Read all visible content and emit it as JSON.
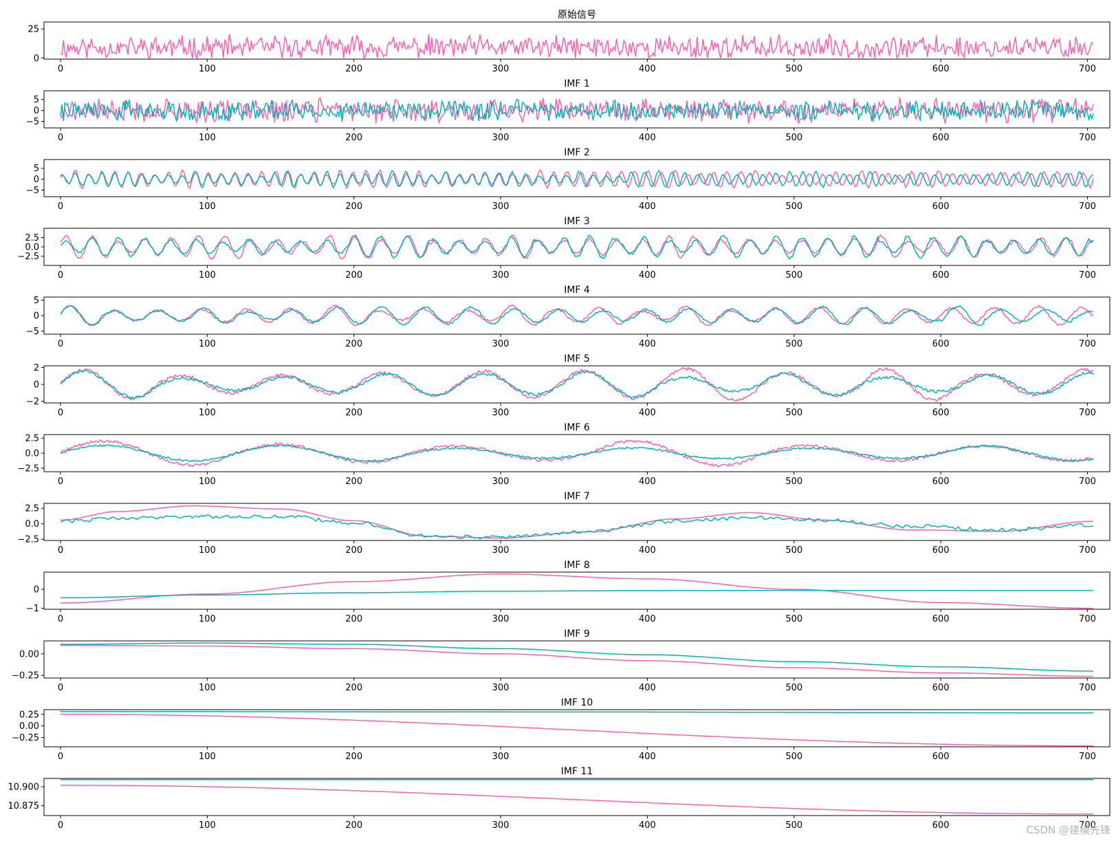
{
  "colors": {
    "original": "#ff5db1",
    "decomposed": "#00b5b8",
    "axes": "#000000"
  },
  "watermark": "CSDN @建模先锋",
  "chart_data": {
    "type": "line",
    "x_range": [
      0,
      704
    ],
    "x_ticks": [
      0,
      100,
      200,
      300,
      400,
      500,
      600,
      700
    ],
    "grid": false,
    "legend": "none",
    "panels": [
      {
        "title": "原始信号",
        "ylim": [
          -1,
          31
        ],
        "yticks": [
          0,
          25
        ],
        "ytick_labels": [
          "0",
          "25"
        ],
        "series": [
          {
            "role": "signal",
            "color": "#ff5db1",
            "shape": "noise",
            "mean": 9,
            "amp": 8,
            "min": 0,
            "max": 30,
            "seed": 11,
            "x": [
              0,
              704
            ]
          }
        ]
      },
      {
        "title": "IMF 1",
        "ylim": [
          -8,
          9
        ],
        "yticks": [
          -5,
          0,
          5
        ],
        "ytick_labels": [
          "−5",
          "0",
          "5"
        ],
        "series": [
          {
            "role": "original",
            "color": "#ff5db1",
            "shape": "noise",
            "mean": 0,
            "amp": 4.2,
            "seed": 21,
            "x": [
              0,
              704
            ]
          },
          {
            "role": "reconstructed",
            "color": "#00b5b8",
            "shape": "noise",
            "mean": 0,
            "amp": 3.6,
            "seed": 22,
            "x": [
              0,
              704
            ]
          }
        ]
      },
      {
        "title": "IMF 2",
        "ylim": [
          -8,
          9
        ],
        "yticks": [
          -5,
          0,
          5
        ],
        "ytick_labels": [
          "−5",
          "0",
          "5"
        ],
        "series": [
          {
            "role": "original",
            "color": "#ff5db1",
            "shape": "osc",
            "period": 9,
            "amp": 3.5,
            "seed": 31,
            "x": [
              0,
              704
            ]
          },
          {
            "role": "reconstructed",
            "color": "#00b5b8",
            "shape": "osc",
            "period": 9,
            "amp": 3.2,
            "seed": 32,
            "x": [
              0,
              704
            ]
          }
        ]
      },
      {
        "title": "IMF 3",
        "ylim": [
          -5,
          5
        ],
        "yticks": [
          -2.5,
          0,
          2.5
        ],
        "ytick_labels": [
          "−2.5",
          "0.0",
          "2.5"
        ],
        "series": [
          {
            "role": "original",
            "color": "#ff5db1",
            "shape": "osc",
            "period": 18,
            "amp": 2.6,
            "seed": 41,
            "x": [
              0,
              704
            ]
          },
          {
            "role": "reconstructed",
            "color": "#00b5b8",
            "shape": "osc",
            "period": 18,
            "amp": 2.5,
            "seed": 42,
            "x": [
              0,
              704
            ]
          }
        ]
      },
      {
        "title": "IMF 4",
        "ylim": [
          -6,
          6
        ],
        "yticks": [
          -5,
          0,
          5
        ],
        "ytick_labels": [
          "−5",
          "0",
          "5"
        ],
        "series": [
          {
            "role": "original",
            "color": "#ff5db1",
            "shape": "osc",
            "period": 30,
            "amp": 2.8,
            "seed": 51,
            "x": [
              0,
              704
            ]
          },
          {
            "role": "reconstructed",
            "color": "#00b5b8",
            "shape": "osc",
            "period": 30,
            "amp": 2.5,
            "seed": 52,
            "x": [
              0,
              704
            ]
          }
        ]
      },
      {
        "title": "IMF 5",
        "ylim": [
          -2.2,
          2.2
        ],
        "yticks": [
          -2,
          0,
          2
        ],
        "ytick_labels": [
          "−2",
          "0",
          "2"
        ],
        "series": [
          {
            "role": "original",
            "color": "#ff5db1",
            "shape": "osc",
            "period": 68,
            "amp": 1.6,
            "seed": 61,
            "x": [
              0,
              704
            ]
          },
          {
            "role": "reconstructed",
            "color": "#00b5b8",
            "shape": "osc",
            "period": 68,
            "amp": 1.4,
            "seed": 62,
            "x": [
              0,
              704
            ]
          }
        ]
      },
      {
        "title": "IMF 6",
        "ylim": [
          -3.1,
          3.1
        ],
        "yticks": [
          -2.5,
          0,
          2.5
        ],
        "ytick_labels": [
          "−2.5",
          "0.0",
          "2.5"
        ],
        "series": [
          {
            "role": "original",
            "color": "#ff5db1",
            "shape": "osc",
            "period": 120,
            "amp": 2.0,
            "seed": 71,
            "x": [
              0,
              704
            ]
          },
          {
            "role": "reconstructed",
            "color": "#00b5b8",
            "shape": "osc",
            "period": 120,
            "amp": 1.2,
            "seed": 72,
            "x": [
              0,
              704
            ]
          }
        ]
      },
      {
        "title": "IMF 7",
        "ylim": [
          -2.7,
          3.3
        ],
        "yticks": [
          -2.5,
          0,
          2.5
        ],
        "ytick_labels": [
          "−2.5",
          "0.0",
          "2.5"
        ],
        "series": [
          {
            "role": "original",
            "color": "#ff5db1",
            "shape": "points",
            "x": [
              0,
              40,
              90,
              150,
              200,
              250,
              300,
              360,
              420,
              470,
              520,
              580,
              640,
              704
            ],
            "y": [
              0.6,
              2.0,
              2.9,
              2.4,
              0.5,
              -2.0,
              -2.3,
              -1.3,
              0.8,
              1.8,
              0.6,
              -1.0,
              -1.2,
              0.4
            ]
          },
          {
            "role": "reconstructed",
            "color": "#00b5b8",
            "shape": "points",
            "noise": 0.3,
            "seed": 82,
            "x": [
              0,
              40,
              90,
              150,
              200,
              250,
              300,
              360,
              420,
              470,
              520,
              580,
              640,
              704
            ],
            "y": [
              0.4,
              0.9,
              1.2,
              1.2,
              0.2,
              -2.0,
              -2.2,
              -1.2,
              0.4,
              1.0,
              0.6,
              -0.4,
              -1.0,
              -0.2
            ]
          }
        ]
      },
      {
        "title": "IMF 8",
        "ylim": [
          -1.05,
          0.9
        ],
        "yticks": [
          -1,
          0
        ],
        "ytick_labels": [
          "−1",
          "0"
        ],
        "series": [
          {
            "role": "original",
            "color": "#ff5db1",
            "shape": "points",
            "x": [
              0,
              100,
              200,
              300,
              400,
              500,
              600,
              704
            ],
            "y": [
              -0.72,
              -0.25,
              0.4,
              0.8,
              0.55,
              0.0,
              -0.7,
              -1.0
            ]
          },
          {
            "role": "reconstructed",
            "color": "#00b5b8",
            "shape": "points",
            "x": [
              0,
              100,
              200,
              300,
              400,
              500,
              600,
              704
            ],
            "y": [
              -0.45,
              -0.3,
              -0.18,
              -0.1,
              -0.07,
              -0.06,
              -0.06,
              -0.06
            ]
          }
        ]
      },
      {
        "title": "IMF 9",
        "ylim": [
          -0.28,
          0.15
        ],
        "yticks": [
          -0.25,
          0.0
        ],
        "ytick_labels": [
          "−0.25",
          "0.00"
        ],
        "series": [
          {
            "role": "original",
            "color": "#ff5db1",
            "shape": "points",
            "x": [
              0,
              100,
              200,
              300,
              400,
              500,
              600,
              704
            ],
            "y": [
              0.1,
              0.09,
              0.06,
              0.0,
              -0.08,
              -0.16,
              -0.22,
              -0.26
            ]
          },
          {
            "role": "reconstructed",
            "color": "#00b5b8",
            "shape": "points",
            "x": [
              0,
              100,
              200,
              300,
              400,
              500,
              600,
              704
            ],
            "y": [
              0.11,
              0.125,
              0.11,
              0.06,
              -0.01,
              -0.09,
              -0.15,
              -0.2
            ]
          }
        ]
      },
      {
        "title": "IMF 10",
        "ylim": [
          -0.45,
          0.35
        ],
        "yticks": [
          -0.25,
          0.0,
          0.25
        ],
        "ytick_labels": [
          "−0.25",
          "0.00",
          "0.25"
        ],
        "series": [
          {
            "role": "original",
            "color": "#ff5db1",
            "shape": "points",
            "x": [
              0,
              704
            ],
            "y": [
              0.25,
              -0.43
            ]
          },
          {
            "role": "reconstructed",
            "color": "#00b5b8",
            "shape": "points",
            "x": [
              0,
              350,
              704
            ],
            "y": [
              0.31,
              0.3,
              0.28
            ]
          }
        ]
      },
      {
        "title": "IMF 11",
        "ylim": [
          10.862,
          10.911
        ],
        "yticks": [
          10.875,
          10.9
        ],
        "ytick_labels": [
          "10.875",
          "10.900"
        ],
        "series": [
          {
            "role": "original",
            "color": "#ff5db1",
            "shape": "points",
            "x": [
              0,
              704
            ],
            "y": [
              10.902,
              10.864
            ]
          },
          {
            "role": "reconstructed",
            "color": "#00b5b8",
            "shape": "points",
            "x": [
              0,
              704
            ],
            "y": [
              10.9095,
              10.9095
            ]
          }
        ]
      }
    ]
  }
}
